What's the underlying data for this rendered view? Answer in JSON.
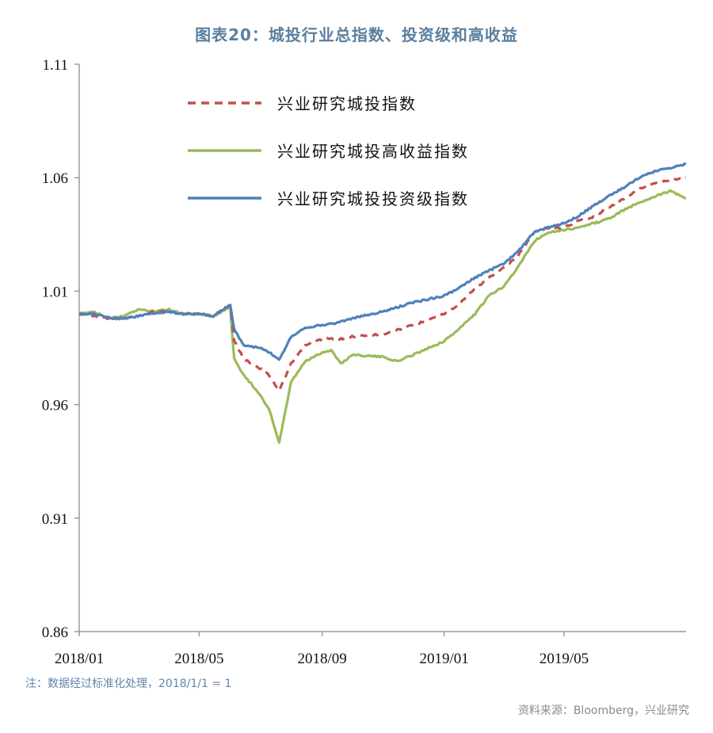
{
  "title": "图表20：城投行业总指数、投资级和高收益",
  "note": "注：数据经过标准化处理，2018/1/1 = 1",
  "source": "资料来源：Bloomberg，兴业研究",
  "colors": {
    "total": "#c0504d",
    "high_yield": "#9bbb59",
    "investment": "#4f81bd",
    "axis": "#9a9a9a"
  },
  "chart_data": {
    "type": "line",
    "ylim": [
      0.86,
      1.11
    ],
    "yticks": [
      "0.86",
      "0.91",
      "0.96",
      "1.01",
      "1.06",
      "1.11"
    ],
    "xlim": [
      "2018-01-01",
      "2019-08-31"
    ],
    "xticks": [
      {
        "date": "2018-01-01",
        "label": "2018/01"
      },
      {
        "date": "2018-05-01",
        "label": "2018/05"
      },
      {
        "date": "2018-09-01",
        "label": "2018/09"
      },
      {
        "date": "2019-01-01",
        "label": "2019/01"
      },
      {
        "date": "2019-05-01",
        "label": "2019/05"
      }
    ],
    "legend_position": "top-left",
    "series": [
      {
        "name": "兴业研究城投指数",
        "style": "dashed",
        "color": "#c0504d",
        "points": [
          [
            "2018-01-01",
            1.0
          ],
          [
            "2018-01-15",
            0.999
          ],
          [
            "2018-02-01",
            0.998
          ],
          [
            "2018-02-15",
            0.998
          ],
          [
            "2018-03-01",
            0.999
          ],
          [
            "2018-03-15",
            1.001
          ],
          [
            "2018-04-01",
            1.001
          ],
          [
            "2018-04-15",
            1.0
          ],
          [
            "2018-05-01",
            1.0
          ],
          [
            "2018-05-15",
            0.999
          ],
          [
            "2018-06-01",
            1.004
          ],
          [
            "2018-06-05",
            0.988
          ],
          [
            "2018-06-15",
            0.98
          ],
          [
            "2018-07-01",
            0.976
          ],
          [
            "2018-07-10",
            0.973
          ],
          [
            "2018-07-20",
            0.966
          ],
          [
            "2018-08-01",
            0.978
          ],
          [
            "2018-08-15",
            0.986
          ],
          [
            "2018-09-01",
            0.989
          ],
          [
            "2018-09-20",
            0.989
          ],
          [
            "2018-10-01",
            0.99
          ],
          [
            "2018-11-01",
            0.991
          ],
          [
            "2018-12-01",
            0.995
          ],
          [
            "2019-01-01",
            1.0
          ],
          [
            "2019-01-15",
            1.004
          ],
          [
            "2019-02-01",
            1.011
          ],
          [
            "2019-02-15",
            1.016
          ],
          [
            "2019-03-01",
            1.02
          ],
          [
            "2019-03-15",
            1.025
          ],
          [
            "2019-04-01",
            1.036
          ],
          [
            "2019-04-15",
            1.038
          ],
          [
            "2019-05-01",
            1.038
          ],
          [
            "2019-05-15",
            1.041
          ],
          [
            "2019-06-01",
            1.043
          ],
          [
            "2019-06-15",
            1.047
          ],
          [
            "2019-07-01",
            1.051
          ],
          [
            "2019-07-15",
            1.055
          ],
          [
            "2019-08-01",
            1.058
          ],
          [
            "2019-08-31",
            1.06
          ]
        ]
      },
      {
        "name": "兴业研究城投高收益指数",
        "style": "solid",
        "color": "#9bbb59",
        "points": [
          [
            "2018-01-01",
            1.0
          ],
          [
            "2018-01-15",
            1.001
          ],
          [
            "2018-02-01",
            0.998
          ],
          [
            "2018-02-15",
            0.999
          ],
          [
            "2018-03-01",
            1.002
          ],
          [
            "2018-03-15",
            1.001
          ],
          [
            "2018-04-01",
            1.002
          ],
          [
            "2018-04-15",
            1.0
          ],
          [
            "2018-05-01",
            1.0
          ],
          [
            "2018-05-15",
            0.999
          ],
          [
            "2018-06-01",
            1.003
          ],
          [
            "2018-06-05",
            0.98
          ],
          [
            "2018-06-15",
            0.973
          ],
          [
            "2018-07-01",
            0.964
          ],
          [
            "2018-07-10",
            0.958
          ],
          [
            "2018-07-20",
            0.943
          ],
          [
            "2018-08-01",
            0.97
          ],
          [
            "2018-08-15",
            0.979
          ],
          [
            "2018-09-01",
            0.983
          ],
          [
            "2018-09-10",
            0.984
          ],
          [
            "2018-09-20",
            0.978
          ],
          [
            "2018-10-01",
            0.982
          ],
          [
            "2018-11-01",
            0.981
          ],
          [
            "2018-11-15",
            0.979
          ],
          [
            "2018-12-01",
            0.982
          ],
          [
            "2019-01-01",
            0.988
          ],
          [
            "2019-01-15",
            0.993
          ],
          [
            "2019-02-01",
            1.0
          ],
          [
            "2019-02-15",
            1.008
          ],
          [
            "2019-03-01",
            1.012
          ],
          [
            "2019-03-15",
            1.02
          ],
          [
            "2019-04-01",
            1.032
          ],
          [
            "2019-04-15",
            1.036
          ],
          [
            "2019-05-01",
            1.037
          ],
          [
            "2019-05-15",
            1.038
          ],
          [
            "2019-06-01",
            1.04
          ],
          [
            "2019-06-15",
            1.042
          ],
          [
            "2019-07-01",
            1.046
          ],
          [
            "2019-07-15",
            1.049
          ],
          [
            "2019-08-01",
            1.052
          ],
          [
            "2019-08-15",
            1.054
          ],
          [
            "2019-08-31",
            1.051
          ]
        ]
      },
      {
        "name": "兴业研究城投投资级指数",
        "style": "solid",
        "color": "#4f81bd",
        "points": [
          [
            "2018-01-01",
            1.0
          ],
          [
            "2018-01-15",
            1.0
          ],
          [
            "2018-02-01",
            0.998
          ],
          [
            "2018-02-15",
            0.998
          ],
          [
            "2018-03-01",
            0.999
          ],
          [
            "2018-03-15",
            1.0
          ],
          [
            "2018-04-01",
            1.001
          ],
          [
            "2018-04-15",
            1.0
          ],
          [
            "2018-05-01",
            1.0
          ],
          [
            "2018-05-15",
            0.999
          ],
          [
            "2018-06-01",
            1.004
          ],
          [
            "2018-06-05",
            0.993
          ],
          [
            "2018-06-15",
            0.986
          ],
          [
            "2018-07-01",
            0.985
          ],
          [
            "2018-07-10",
            0.983
          ],
          [
            "2018-07-20",
            0.98
          ],
          [
            "2018-08-01",
            0.99
          ],
          [
            "2018-08-15",
            0.994
          ],
          [
            "2018-09-01",
            0.995
          ],
          [
            "2018-09-15",
            0.996
          ],
          [
            "2018-10-01",
            0.998
          ],
          [
            "2018-11-01",
            1.001
          ],
          [
            "2018-12-01",
            1.005
          ],
          [
            "2019-01-01",
            1.008
          ],
          [
            "2019-01-15",
            1.011
          ],
          [
            "2019-02-01",
            1.016
          ],
          [
            "2019-02-15",
            1.019
          ],
          [
            "2019-03-01",
            1.022
          ],
          [
            "2019-03-15",
            1.027
          ],
          [
            "2019-04-01",
            1.036
          ],
          [
            "2019-04-15",
            1.038
          ],
          [
            "2019-05-01",
            1.04
          ],
          [
            "2019-05-15",
            1.043
          ],
          [
            "2019-06-01",
            1.048
          ],
          [
            "2019-06-15",
            1.052
          ],
          [
            "2019-07-01",
            1.056
          ],
          [
            "2019-07-15",
            1.06
          ],
          [
            "2019-08-01",
            1.063
          ],
          [
            "2019-08-31",
            1.066
          ]
        ]
      }
    ]
  }
}
